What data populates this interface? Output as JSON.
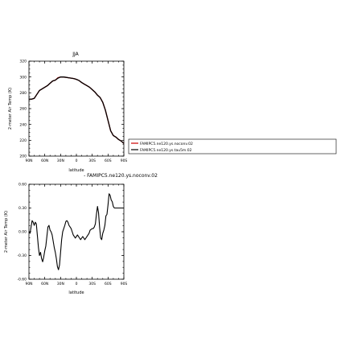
{
  "chart_data": [
    {
      "type": "line",
      "title": "JJA",
      "xlabel": "latitude",
      "ylabel": "2-meter Air Temp (K)",
      "xlim": [
        -90,
        90
      ],
      "ylim": [
        200,
        320
      ],
      "xticks": [
        -90,
        -60,
        -30,
        0,
        30,
        60,
        90
      ],
      "xtick_labels": [
        "90N",
        "60N",
        "30N",
        "0",
        "30S",
        "60S",
        "90S"
      ],
      "yticks": [
        200,
        220,
        240,
        260,
        280,
        300,
        320
      ],
      "ytick_labels": [
        "200",
        "220",
        "240",
        "260",
        "280",
        "300",
        "320"
      ],
      "grid": false,
      "legend_position": "right",
      "series": [
        {
          "name": "FAMIPC5.ne120.ys.noconv.02",
          "color": "#cc0000",
          "x": [
            -90,
            -85,
            -80,
            -75,
            -70,
            -65,
            -60,
            -55,
            -50,
            -45,
            -40,
            -35,
            -30,
            -25,
            -20,
            -15,
            -10,
            -5,
            0,
            5,
            10,
            15,
            20,
            25,
            30,
            35,
            40,
            45,
            50,
            55,
            60,
            65,
            70,
            75,
            80,
            85,
            90
          ],
          "y": [
            272,
            272,
            273,
            278,
            283,
            285,
            287,
            289,
            292,
            295,
            296,
            299,
            300,
            300,
            299.5,
            299,
            298.5,
            298,
            297,
            295.5,
            293,
            291,
            289,
            287,
            284,
            281,
            277,
            274,
            268,
            258,
            245,
            232,
            226,
            224,
            221,
            219,
            216
          ]
        },
        {
          "name": "FAMIPC5.ne120.ys.tau5m.02",
          "color": "#000000",
          "x": [
            -90,
            -85,
            -80,
            -75,
            -70,
            -65,
            -60,
            -55,
            -50,
            -45,
            -40,
            -35,
            -30,
            -25,
            -20,
            -15,
            -10,
            -5,
            0,
            5,
            10,
            15,
            20,
            25,
            30,
            35,
            40,
            45,
            50,
            55,
            60,
            65,
            70,
            75,
            80,
            85,
            90
          ],
          "y": [
            272,
            272,
            273,
            278,
            283,
            285,
            287,
            289,
            292,
            295,
            296,
            298.5,
            300,
            300,
            299.6,
            299,
            298.5,
            298,
            297,
            295.5,
            293,
            291,
            289,
            287,
            284,
            281,
            277,
            274,
            268,
            258,
            245,
            232,
            226,
            224,
            221,
            219,
            216
          ]
        }
      ]
    },
    {
      "type": "line",
      "title": "- FAMIPC5.ne120.ys.noconv.02",
      "xlabel": "latitude",
      "ylabel": "2-meter Air Temp (K)",
      "xlim": [
        -90,
        90
      ],
      "ylim": [
        -0.6,
        0.6
      ],
      "xticks": [
        -90,
        -60,
        -30,
        0,
        30,
        60,
        90
      ],
      "xtick_labels": [
        "90N",
        "60N",
        "30N",
        "0",
        "30S",
        "60S",
        "90S"
      ],
      "yticks": [
        -0.6,
        -0.3,
        0,
        0.3,
        0.6
      ],
      "ytick_labels": [
        "-0.60",
        "-0.30",
        "0.00",
        "0.30",
        "0.60"
      ],
      "grid": false,
      "series": [
        {
          "color": "#000000",
          "x": [
            -90,
            -88,
            -86,
            -84,
            -82,
            -80,
            -78,
            -76,
            -74,
            -72,
            -70,
            -68,
            -66,
            -64,
            -62,
            -60,
            -58,
            -56,
            -54,
            -52,
            -50,
            -48,
            -46,
            -44,
            -42,
            -40,
            -38,
            -36,
            -34,
            -32,
            -30,
            -28,
            -26,
            -24,
            -22,
            -20,
            -18,
            -16,
            -14,
            -12,
            -10,
            -8,
            -6,
            -4,
            -2,
            0,
            2,
            4,
            6,
            8,
            10,
            12,
            14,
            16,
            18,
            20,
            22,
            24,
            26,
            28,
            30,
            32,
            34,
            36,
            38,
            40,
            42,
            44,
            46,
            48,
            50,
            52,
            54,
            56,
            58,
            60,
            62,
            64,
            66,
            68,
            70,
            72,
            74,
            76,
            78,
            80,
            82,
            84,
            86,
            88,
            90
          ],
          "y": [
            0.0,
            -0.02,
            0.06,
            0.14,
            0.12,
            0.08,
            0.12,
            0.1,
            -0.05,
            -0.2,
            -0.3,
            -0.26,
            -0.34,
            -0.38,
            -0.32,
            -0.24,
            -0.18,
            -0.06,
            0.06,
            0.08,
            0.02,
            0.0,
            -0.04,
            -0.12,
            -0.2,
            -0.26,
            -0.34,
            -0.44,
            -0.48,
            -0.42,
            -0.26,
            -0.1,
            0.0,
            0.04,
            0.08,
            0.13,
            0.14,
            0.12,
            0.08,
            0.06,
            0.04,
            0.0,
            -0.04,
            -0.06,
            -0.08,
            -0.06,
            -0.04,
            -0.06,
            -0.08,
            -0.1,
            -0.08,
            -0.06,
            -0.08,
            -0.1,
            -0.08,
            -0.06,
            -0.04,
            -0.02,
            0.02,
            0.03,
            0.04,
            0.04,
            0.06,
            0.1,
            0.22,
            0.32,
            0.24,
            0.06,
            -0.08,
            -0.1,
            -0.02,
            0.02,
            0.08,
            0.2,
            0.22,
            0.34,
            0.48,
            0.46,
            0.4,
            0.38,
            0.32,
            0.3,
            0.3,
            0.3,
            0.3,
            0.3,
            0.3,
            0.3,
            0.3,
            0.3,
            0.3
          ]
        }
      ]
    }
  ]
}
